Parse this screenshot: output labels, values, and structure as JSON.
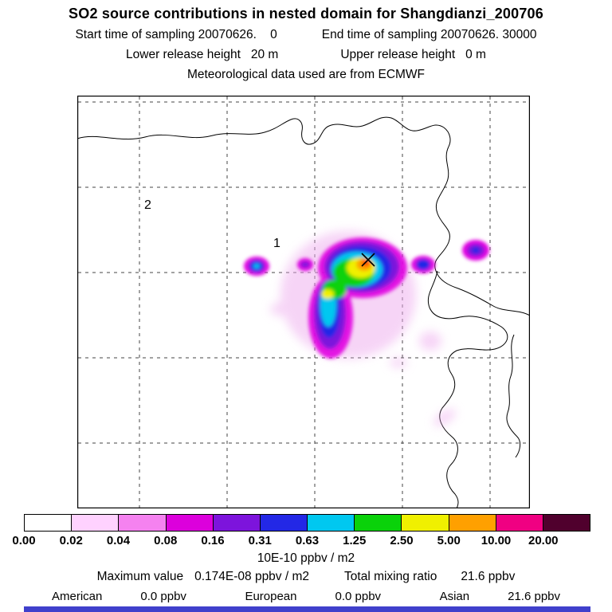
{
  "header": {
    "title": "SO2 source contributions in nested domain for Shangdianzi_200706",
    "start_time": "Start time of sampling 20070626.    0",
    "end_time": "End time of sampling 20070626. 30000",
    "lower_height": "Lower release height   20 m",
    "upper_height": "Upper release height   0 m",
    "met_source": "Meteorological data used are from ECMWF"
  },
  "map": {
    "domain_label_2": "2",
    "domain_label_1": "1",
    "marker": "receptor-cross"
  },
  "chart_data": {
    "type": "heatmap",
    "title": "SO2 source contributions in nested domain for Shangdianzi_200706",
    "units": "10E-10 ppbv / m2",
    "colorbar": {
      "orientation": "horizontal",
      "boundaries": [
        0.0,
        0.02,
        0.04,
        0.08,
        0.16,
        0.31,
        0.63,
        1.25,
        2.5,
        5.0,
        10.0,
        20.0
      ],
      "tick_labels": [
        "0.00",
        "0.02",
        "0.04",
        "0.08",
        "0.16",
        "0.31",
        "0.63",
        "1.25",
        "2.50",
        "5.00",
        "10.00",
        "20.00"
      ],
      "colors": [
        "#ffffff",
        "#ffd2ff",
        "#f582f0",
        "#dc00dc",
        "#7d14dc",
        "#2328e6",
        "#00c8f0",
        "#0ad20a",
        "#f0f000",
        "#ffa000",
        "#f00082",
        "#50002d"
      ]
    },
    "stats": {
      "maximum_value": "0.174E-08 ppbv / m2",
      "total_mixing_ratio_ppbv": 21.6
    },
    "contributions": [
      {
        "region": "American",
        "value_ppbv": 0.0
      },
      {
        "region": "European",
        "value_ppbv": 0.0
      },
      {
        "region": "Asian",
        "value_ppbv": 21.6
      }
    ],
    "annotations": {
      "domain_labels": [
        "2",
        "1"
      ],
      "receptor_marker": "cross at plume maximum"
    }
  },
  "footer": {
    "max_label": "Maximum value",
    "max_value": "0.174E-08 ppbv / m2",
    "total_label": "Total mixing ratio",
    "total_value": "21.6 ppbv",
    "contributions": [
      {
        "label": "American",
        "value": "0.0 ppbv"
      },
      {
        "label": "European",
        "value": "0.0 ppbv"
      },
      {
        "label": "Asian",
        "value": "21.6 ppbv"
      }
    ]
  }
}
